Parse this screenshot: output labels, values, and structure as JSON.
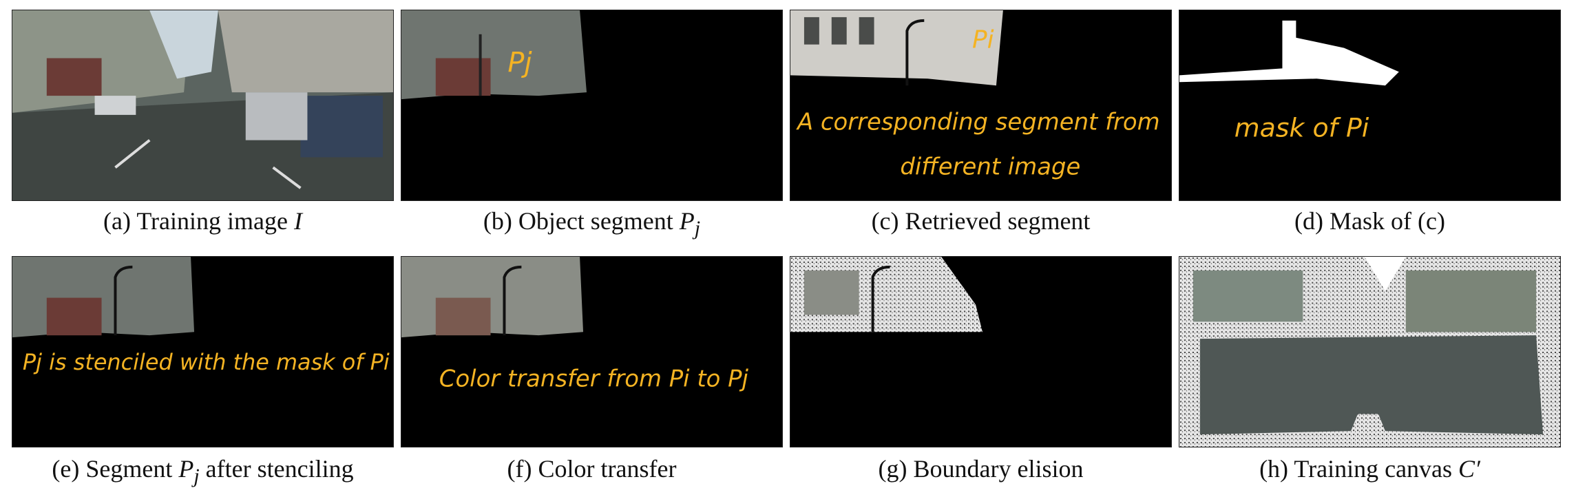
{
  "figure": {
    "panels": [
      {
        "id": "a",
        "prefix": "(a) Training image ",
        "math": "I",
        "suffix": "",
        "annotation": []
      },
      {
        "id": "b",
        "prefix": "(b) Object segment ",
        "math": "P",
        "sub": "j",
        "suffix": "",
        "annotation": [
          "Pj"
        ]
      },
      {
        "id": "c",
        "prefix": "(c) Retrieved segment",
        "math": "",
        "suffix": "",
        "annotation": [
          "Pi",
          "A corresponding segment from",
          "different image"
        ]
      },
      {
        "id": "d",
        "prefix": "(d) Mask of (c)",
        "math": "",
        "suffix": "",
        "annotation": [
          "mask of Pi"
        ]
      },
      {
        "id": "e",
        "prefix": "(e) Segment ",
        "math": "P",
        "sub": "j",
        "suffix": " after stenciling",
        "annotation": [
          "Pj is stenciled with the mask of Pi"
        ]
      },
      {
        "id": "f",
        "prefix": "(f) Color transfer",
        "math": "",
        "suffix": "",
        "annotation": [
          "Color transfer from Pi to Pj"
        ]
      },
      {
        "id": "g",
        "prefix": "(g) Boundary elision",
        "math": "",
        "suffix": "",
        "annotation": []
      },
      {
        "id": "h",
        "prefix": "(h) Training canvas ",
        "math": "C′",
        "suffix": "",
        "annotation": []
      }
    ]
  }
}
